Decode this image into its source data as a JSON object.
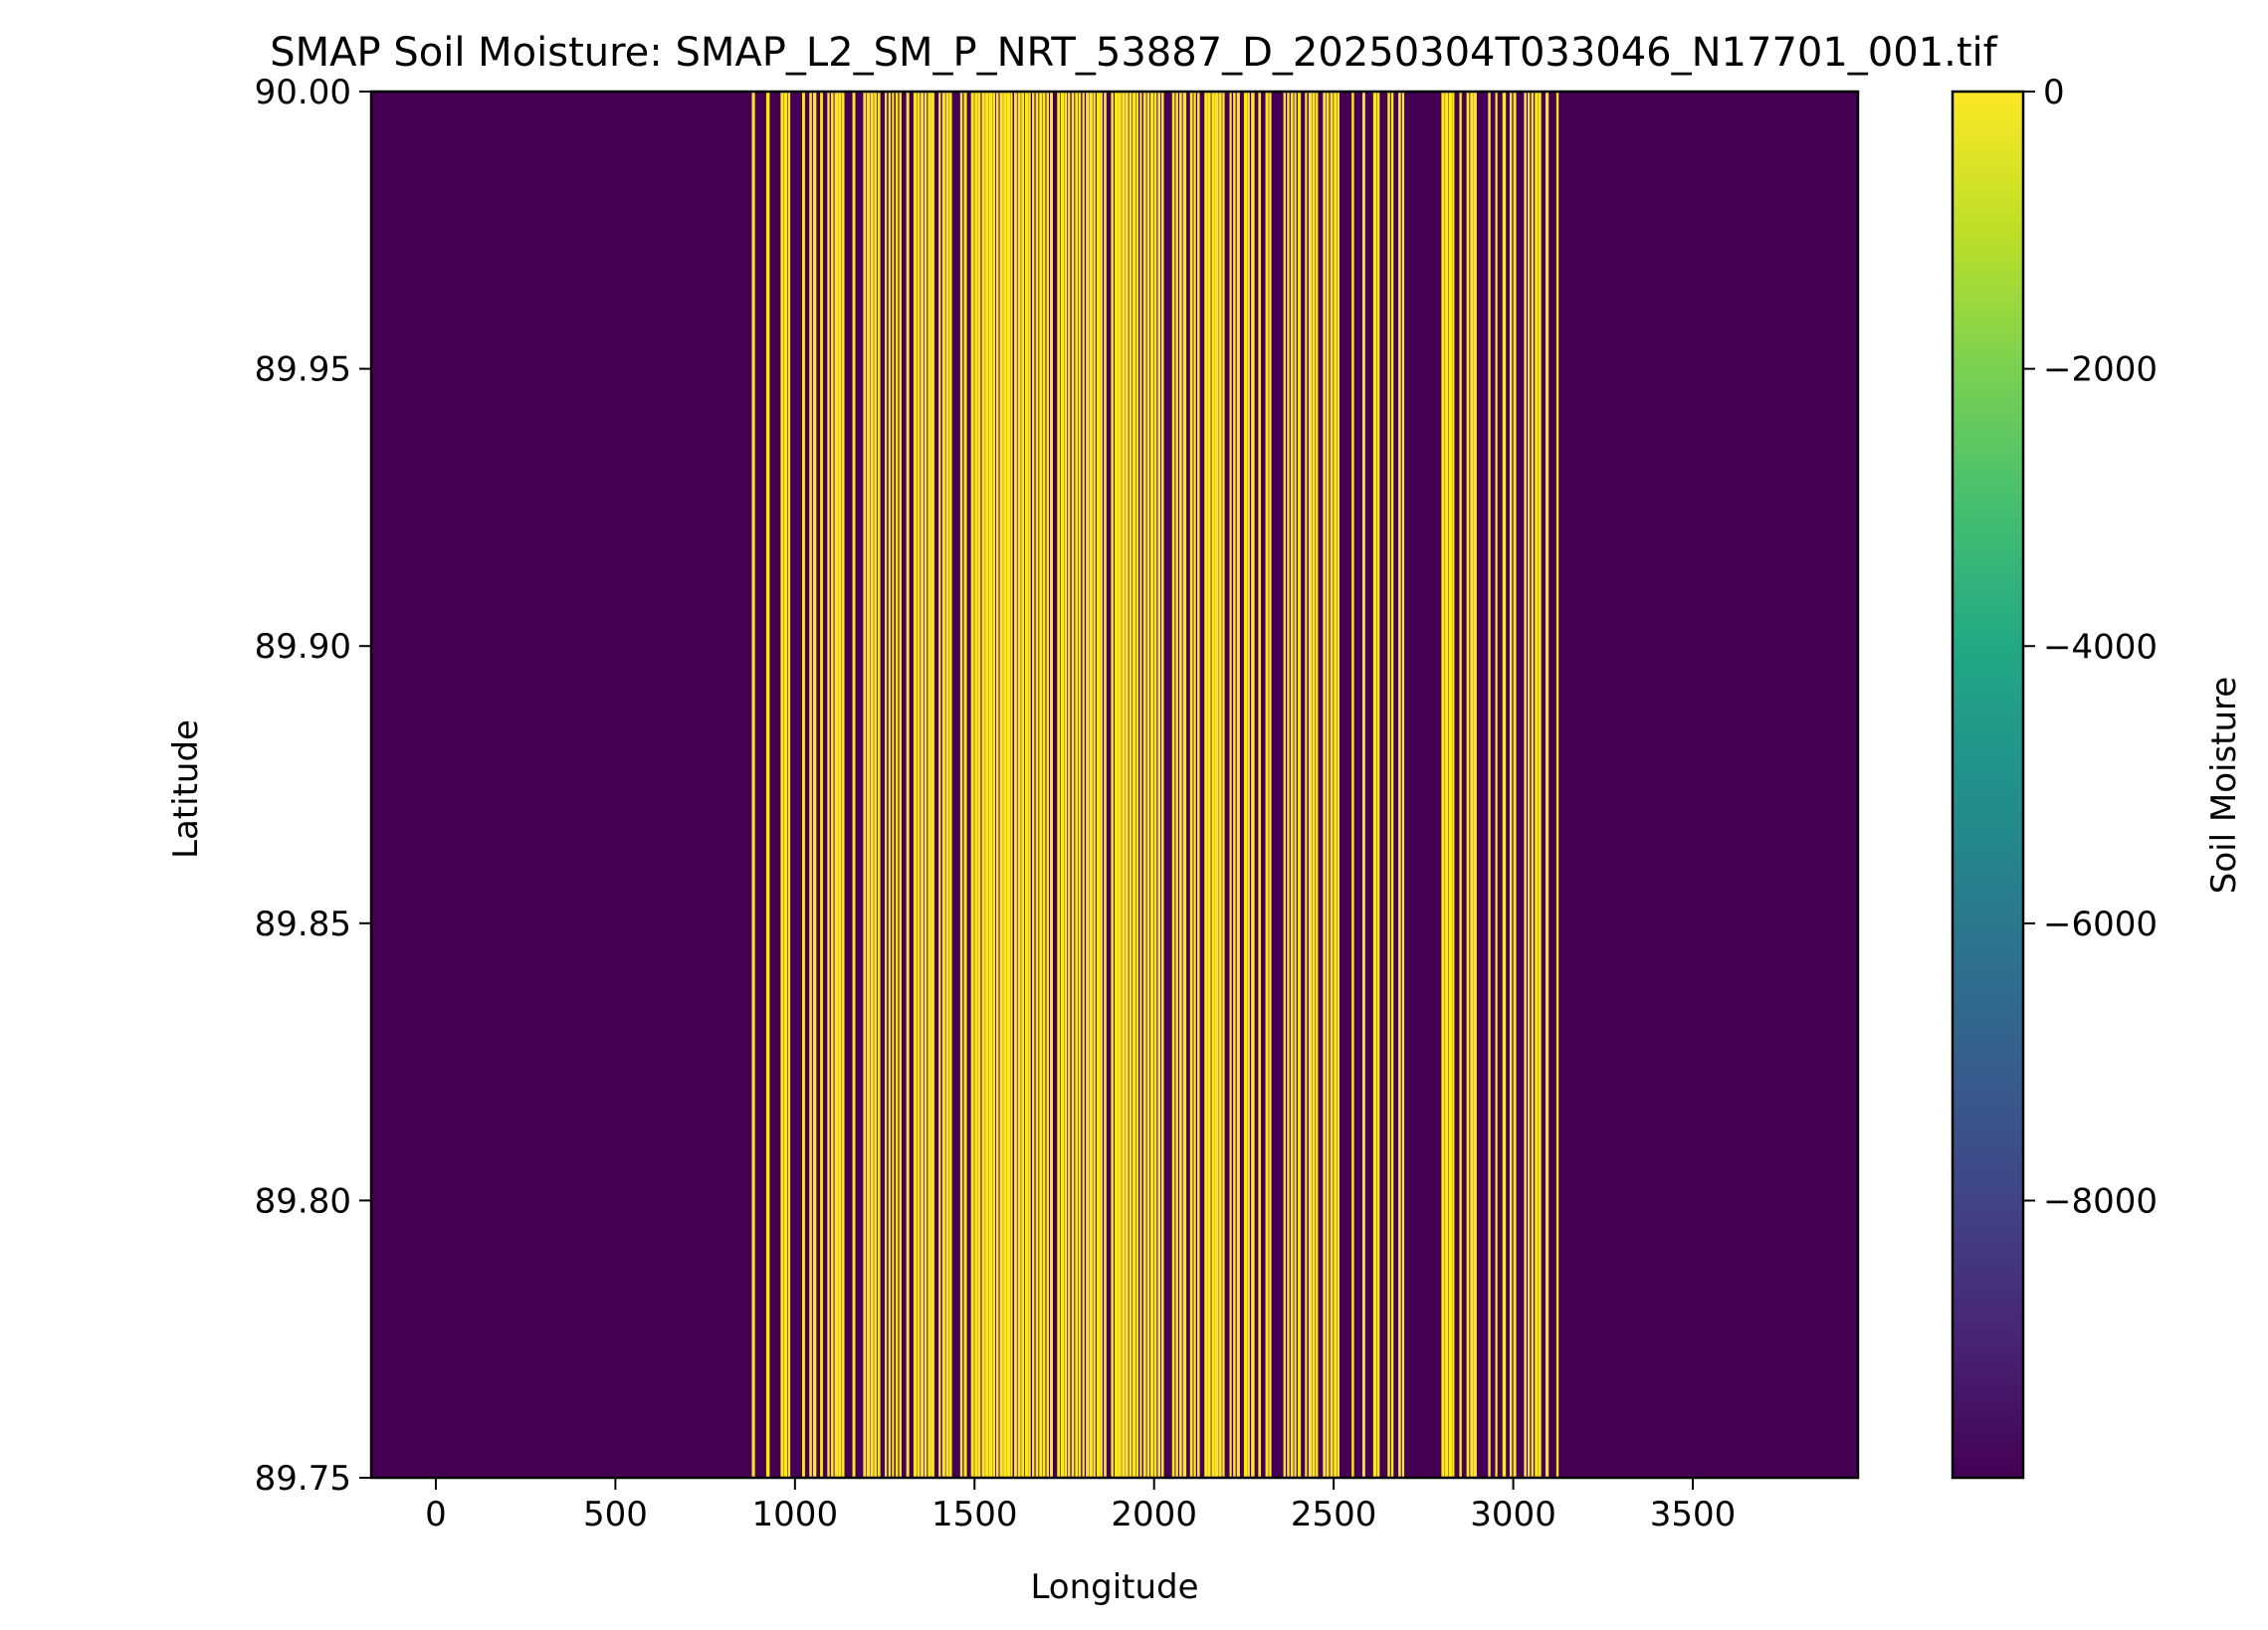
{
  "chart_data": {
    "type": "heatmap",
    "title": "SMAP Soil Moisture: SMAP_L2_SM_P_NRT_53887_D_20250304T033046_N17701_001.tif",
    "xlabel": "Longitude",
    "ylabel": "Latitude",
    "xlim": [
      -180,
      3960
    ],
    "ylim": [
      89.75,
      90.0
    ],
    "x_ticks": [
      0,
      500,
      1000,
      1500,
      2000,
      2500,
      3000,
      3500
    ],
    "y_ticks": [
      90.0,
      89.95,
      89.9,
      89.85,
      89.8,
      89.75
    ],
    "x_tick_labels": [
      "0",
      "500",
      "1000",
      "1500",
      "2000",
      "2500",
      "3000",
      "3500"
    ],
    "y_tick_labels": [
      "90.00",
      "89.95",
      "89.90",
      "89.85",
      "89.80",
      "89.75"
    ],
    "colorbar": {
      "label": "Soil Moisture",
      "colormap": "viridis",
      "range": [
        -9999,
        0
      ],
      "ticks": [
        0,
        -2000,
        -4000,
        -6000,
        -8000
      ],
      "tick_labels": [
        "0",
        "−2000",
        "−4000",
        "−6000",
        "−8000"
      ]
    },
    "fill_value": -9999,
    "valid_value": 0,
    "description_regions": [
      {
        "from": -180,
        "to": 870,
        "value": -9999
      },
      {
        "from": 870,
        "to": 1700,
        "pattern": "dense alternating",
        "value_a": 0,
        "value_b": -9999
      },
      {
        "from": 1700,
        "to": 2180,
        "pattern": "mostly valid",
        "value": 0
      },
      {
        "from": 2180,
        "to": 3130,
        "pattern": "dense alternating",
        "value_a": 0,
        "value_b": -9999
      },
      {
        "from": 3130,
        "to": 3960,
        "value": -9999
      }
    ],
    "colors": {
      "fill": "#440154",
      "valid": "#fde725"
    }
  }
}
